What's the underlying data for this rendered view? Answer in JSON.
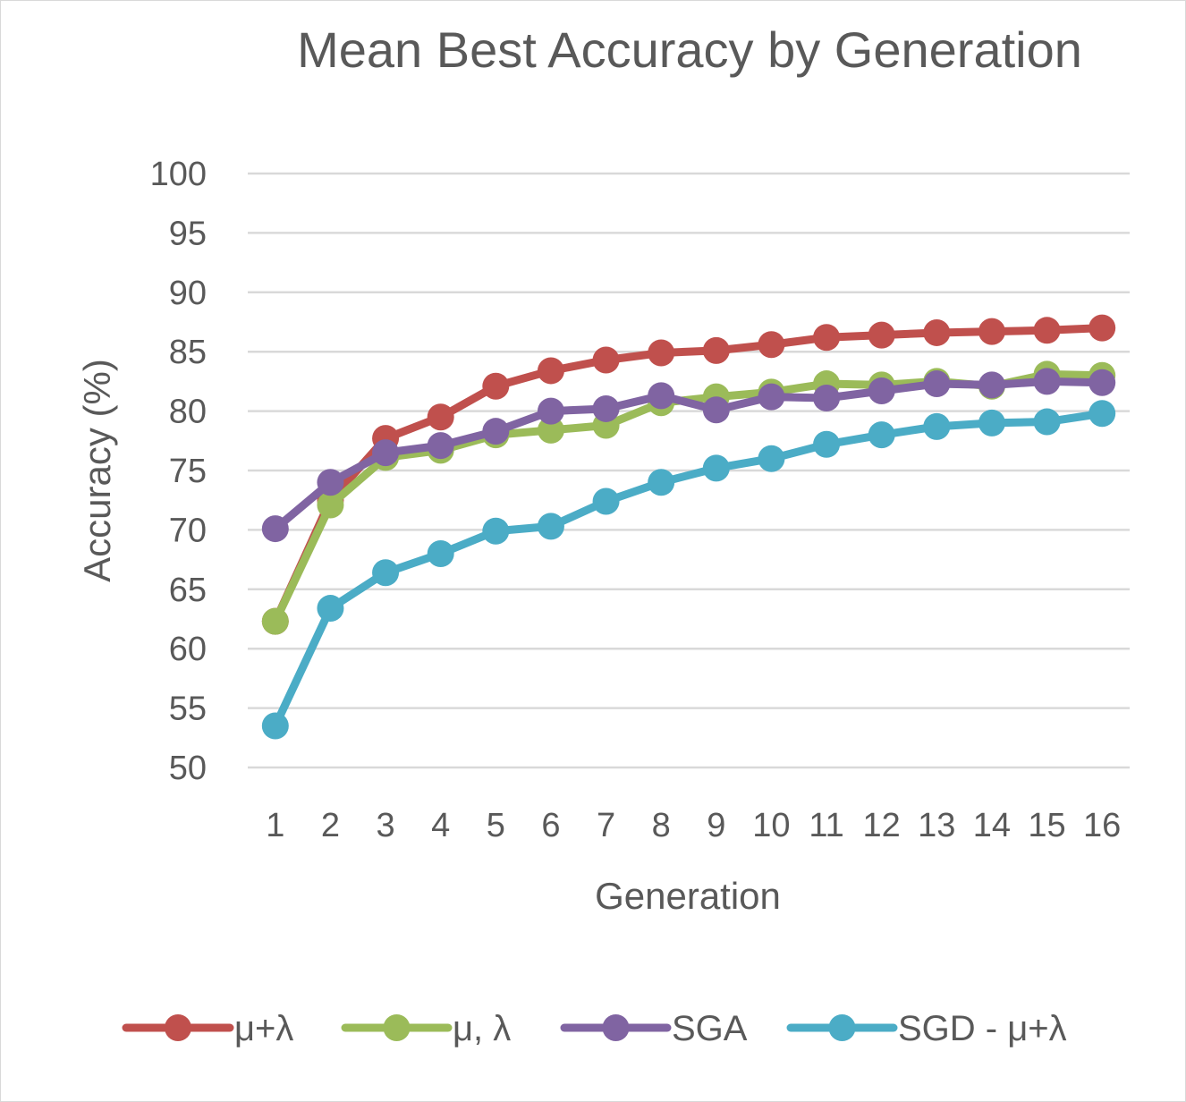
{
  "chart_data": {
    "type": "line",
    "title": "Mean Best Accuracy by Generation",
    "xlabel": "Generation",
    "ylabel": "Accuracy (%)",
    "ylim": [
      50,
      100
    ],
    "yticks": [
      50,
      55,
      60,
      65,
      70,
      75,
      80,
      85,
      90,
      95,
      100
    ],
    "grid": true,
    "legend_position": "bottom",
    "x": [
      1,
      2,
      3,
      4,
      5,
      6,
      7,
      8,
      9,
      10,
      11,
      12,
      13,
      14,
      15,
      16
    ],
    "series": [
      {
        "name": "μ+λ",
        "color": "#c0504d",
        "values": [
          62.3,
          72.5,
          77.7,
          79.5,
          82.1,
          83.4,
          84.3,
          84.9,
          85.1,
          85.6,
          86.2,
          86.4,
          86.6,
          86.7,
          86.8,
          87.0
        ]
      },
      {
        "name": "μ, λ",
        "color": "#9bbb59",
        "values": [
          62.3,
          72.1,
          76.1,
          76.7,
          78.0,
          78.4,
          78.8,
          80.7,
          81.2,
          81.6,
          82.3,
          82.2,
          82.5,
          82.1,
          83.1,
          83.0
        ]
      },
      {
        "name": "SGA",
        "color": "#8064a2",
        "values": [
          70.1,
          74.0,
          76.5,
          77.1,
          78.3,
          80.0,
          80.2,
          81.3,
          80.1,
          81.2,
          81.1,
          81.7,
          82.3,
          82.2,
          82.5,
          82.4
        ]
      },
      {
        "name": "SGD - μ+λ",
        "color": "#4bacc6",
        "values": [
          53.5,
          63.4,
          66.4,
          68.0,
          69.9,
          70.3,
          72.4,
          74.0,
          75.2,
          76.0,
          77.2,
          78.0,
          78.7,
          79.0,
          79.1,
          79.8
        ]
      }
    ]
  }
}
